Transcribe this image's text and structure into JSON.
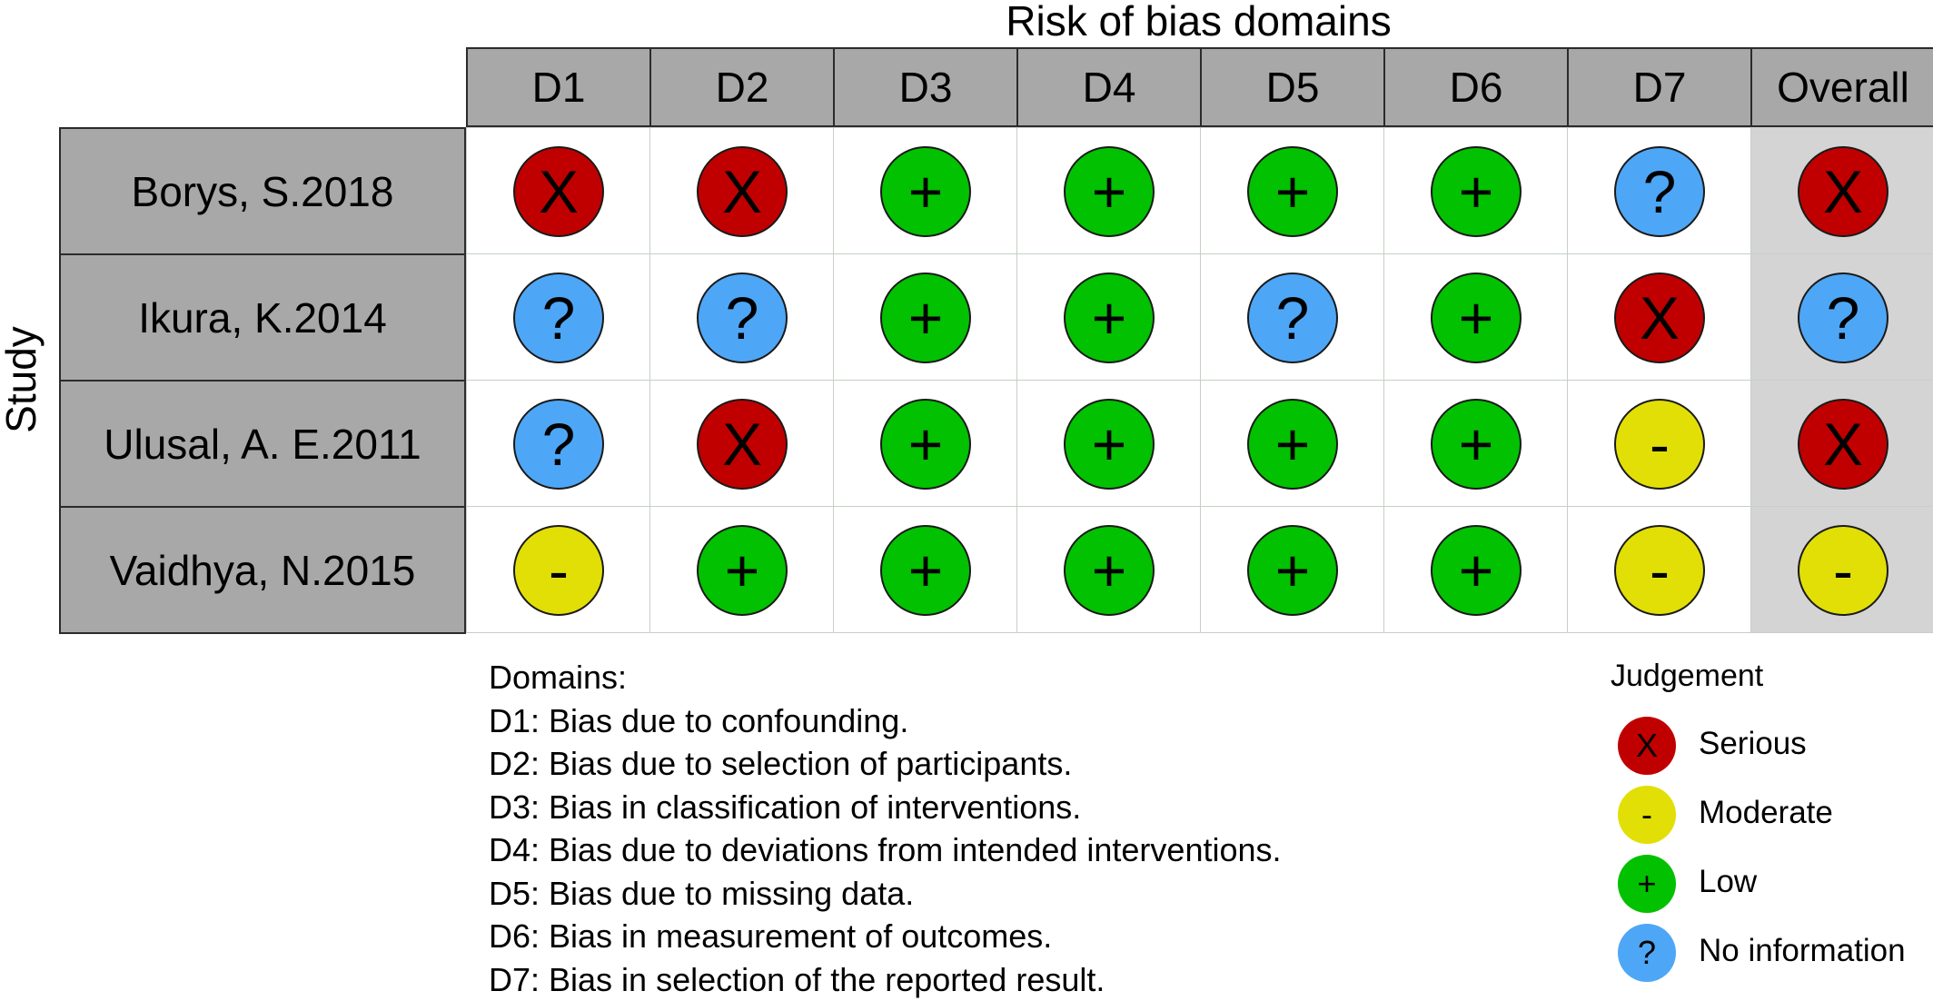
{
  "chart_data": {
    "type": "table",
    "title": "Risk of bias domains",
    "ylabel": "Study",
    "columns": [
      "D1",
      "D2",
      "D3",
      "D4",
      "D5",
      "D6",
      "D7",
      "Overall"
    ],
    "rows": [
      {
        "study": "Borys, S.2018",
        "judgements": [
          "Serious",
          "Serious",
          "Low",
          "Low",
          "Low",
          "Low",
          "No information",
          "Serious"
        ]
      },
      {
        "study": "Ikura, K.2014",
        "judgements": [
          "No information",
          "No information",
          "Low",
          "Low",
          "No information",
          "Low",
          "Serious",
          "No information"
        ]
      },
      {
        "study": "Ulusal, A. E.2011",
        "judgements": [
          "No information",
          "Serious",
          "Low",
          "Low",
          "Low",
          "Low",
          "Moderate",
          "Serious"
        ]
      },
      {
        "study": "Vaidhya, N.2015",
        "judgements": [
          "Moderate",
          "Low",
          "Low",
          "Low",
          "Low",
          "Low",
          "Moderate",
          "Moderate"
        ]
      }
    ],
    "domains_title": "Domains:",
    "domains": [
      "D1: Bias due to confounding.",
      "D2: Bias due to selection of participants.",
      "D3: Bias in classification of interventions.",
      "D4: Bias due to deviations from intended interventions.",
      "D5: Bias due to missing data.",
      "D6: Bias in measurement of outcomes.",
      "D7: Bias in selection of the reported result."
    ],
    "legend_title": "Judgement",
    "legend": [
      {
        "label": "Serious",
        "symbol": "X",
        "color": "#c00000"
      },
      {
        "label": "Moderate",
        "symbol": "-",
        "color": "#e2df07"
      },
      {
        "label": "Low",
        "symbol": "+",
        "color": "#02c100"
      },
      {
        "label": "No information",
        "symbol": "?",
        "color": "#4ea6f6"
      }
    ]
  }
}
